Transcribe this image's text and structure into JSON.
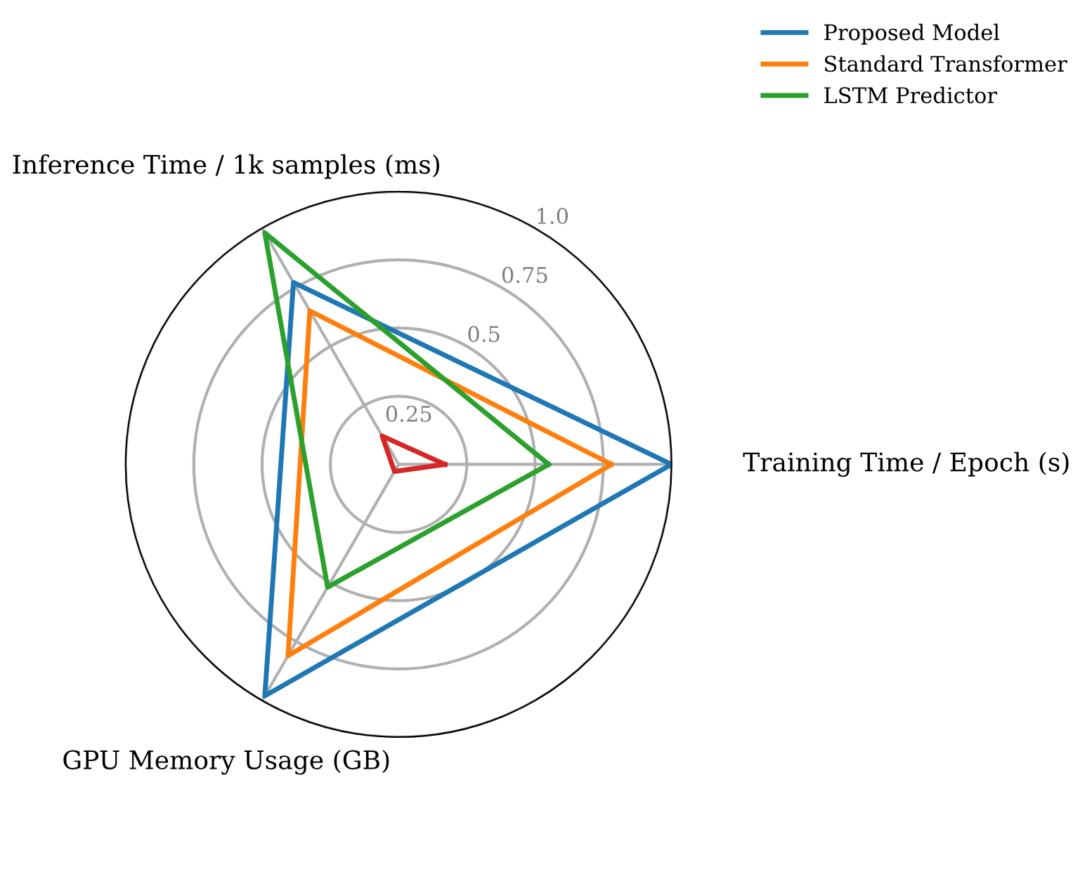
{
  "chart_data": {
    "type": "radar",
    "categories": [
      "Training Time / Epoch (s)",
      "GPU Memory Usage (GB)",
      "Inference Time / 1k samples (ms)"
    ],
    "series": [
      {
        "name": "Proposed Model",
        "color": "#1f77b4",
        "values": [
          1.0,
          0.98,
          0.77
        ]
      },
      {
        "name": "Standard Transformer",
        "color": "#ff7f0e",
        "values": [
          0.78,
          0.81,
          0.65
        ]
      },
      {
        "name": "LSTM Predictor",
        "color": "#2ca02c",
        "values": [
          0.55,
          0.52,
          0.98
        ]
      },
      {
        "color": "#d62728",
        "values": [
          0.17,
          0.03,
          0.12
        ]
      }
    ],
    "ylim": [
      0,
      1.0
    ],
    "yticks": [
      0.25,
      0.5,
      0.75,
      {
        "value": 1.0,
        "label": "1.0"
      }
    ],
    "grid": true,
    "legend": "top right",
    "marker": "none",
    "line_style": "solid"
  }
}
